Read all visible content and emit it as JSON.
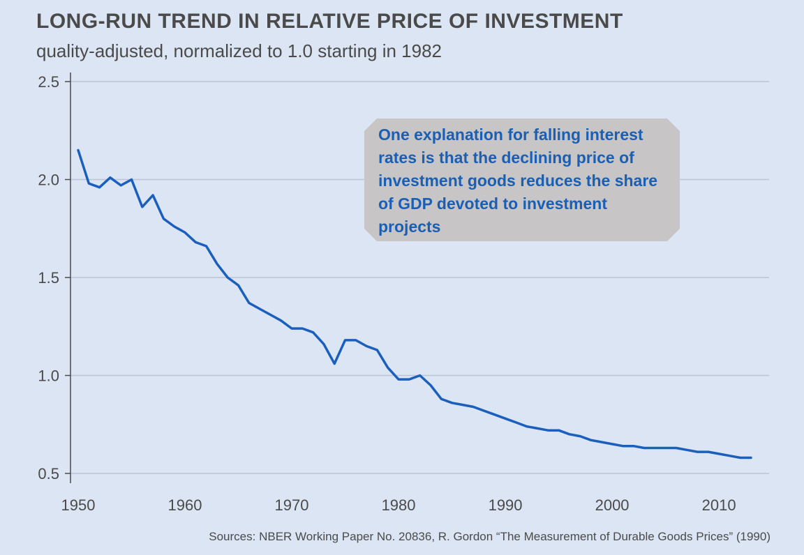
{
  "chart_data": {
    "type": "line",
    "title": "LONG-RUN TREND IN RELATIVE PRICE OF INVESTMENT",
    "subtitle": "quality-adjusted, normalized to 1.0 starting in 1982",
    "xlabel": "",
    "ylabel": "",
    "xlim": [
      1950,
      2013
    ],
    "ylim": [
      0.5,
      2.5
    ],
    "grid": true,
    "x_ticks": [
      1950,
      1960,
      1970,
      1980,
      1990,
      2000,
      2010
    ],
    "y_ticks": [
      0.5,
      1.0,
      1.5,
      2.0,
      2.5
    ],
    "x_tick_labels": [
      "1950",
      "1960",
      "1970",
      "1980",
      "1990",
      "2000",
      "2010"
    ],
    "y_tick_labels": [
      "0.5",
      "1.0",
      "1.5",
      "2.0",
      "2.5"
    ],
    "series": [
      {
        "name": "Relative price of investment",
        "color": "#1b5fbd",
        "x": [
          1950,
          1951,
          1952,
          1953,
          1954,
          1955,
          1956,
          1957,
          1958,
          1959,
          1960,
          1961,
          1962,
          1963,
          1964,
          1965,
          1966,
          1967,
          1968,
          1969,
          1970,
          1971,
          1972,
          1973,
          1974,
          1975,
          1976,
          1977,
          1978,
          1979,
          1980,
          1981,
          1982,
          1983,
          1984,
          1985,
          1986,
          1987,
          1988,
          1989,
          1990,
          1991,
          1992,
          1993,
          1994,
          1995,
          1996,
          1997,
          1998,
          1999,
          2000,
          2001,
          2002,
          2003,
          2004,
          2005,
          2006,
          2007,
          2008,
          2009,
          2010,
          2011,
          2012,
          2013
        ],
        "values": [
          2.15,
          1.98,
          1.96,
          2.01,
          1.97,
          2.0,
          1.86,
          1.92,
          1.8,
          1.76,
          1.73,
          1.68,
          1.66,
          1.57,
          1.5,
          1.46,
          1.37,
          1.34,
          1.31,
          1.28,
          1.24,
          1.24,
          1.22,
          1.16,
          1.06,
          1.18,
          1.18,
          1.15,
          1.13,
          1.04,
          0.98,
          0.98,
          1.0,
          0.95,
          0.88,
          0.86,
          0.85,
          0.84,
          0.82,
          0.8,
          0.78,
          0.76,
          0.74,
          0.73,
          0.72,
          0.72,
          0.7,
          0.69,
          0.67,
          0.66,
          0.65,
          0.64,
          0.64,
          0.63,
          0.63,
          0.63,
          0.63,
          0.62,
          0.61,
          0.61,
          0.6,
          0.59,
          0.58,
          0.58
        ]
      }
    ],
    "annotation": "One explanation for falling interest rates is that the declining price of investment goods reduces the share of GDP devoted to investment projects",
    "source": "Sources: NBER Working Paper No. 20836, R. Gordon “The Measurement of Durable Goods Prices” (1990)"
  }
}
